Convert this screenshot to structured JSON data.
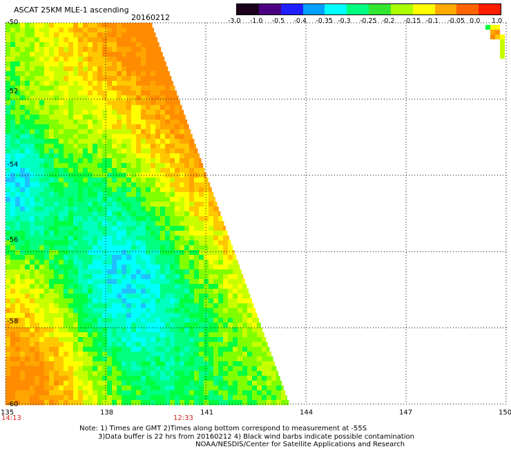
{
  "header": {
    "title": "ASCAT 25KM MLE-1 ascending",
    "date": "20160212"
  },
  "colorbar": {
    "ticks": [
      "-3.0",
      "-1.0",
      "-0.5",
      "-0.4",
      "-0.35",
      "-0.3",
      "-0.25",
      "-0.2",
      "-0.15",
      "-0.1",
      "-0.05",
      "0.0",
      "1.0"
    ],
    "colors": [
      "#1a001a",
      "#4b0082",
      "#1e1eff",
      "#00a0ff",
      "#00ffff",
      "#00ff80",
      "#32e632",
      "#aaff00",
      "#ffff00",
      "#ffaa00",
      "#ff6400",
      "#ff1e00"
    ]
  },
  "map": {
    "lon_ticks": [
      "135",
      "138",
      "141",
      "144",
      "147",
      "150"
    ],
    "lat_ticks": [
      "-50",
      "-52",
      "-54",
      "-56",
      "-58",
      "-60"
    ],
    "lon_range": [
      135,
      150
    ],
    "lat_range": [
      -60,
      -50
    ],
    "time_labels": [
      {
        "text": "14:13",
        "lon": 135
      },
      {
        "text": "12:33",
        "lon": 140.3
      }
    ],
    "swath_palette": [
      "#ff8c00",
      "#ffa500",
      "#ffc800",
      "#ffff00",
      "#c8ff00",
      "#80ff00",
      "#00ff40",
      "#00ff80",
      "#00ffc0",
      "#00ffff",
      "#20c0ff"
    ]
  },
  "notes": {
    "line1": "Note: 1) Times are GMT 2)Times along bottom correspond to measurement at -55S",
    "line2": "3)Data buffer is 22 hrs from 20160212 4) Black wind barbs indicate possible contamination",
    "line3": "NOAA/NESDIS/Center for Satellite Applications and Research"
  }
}
